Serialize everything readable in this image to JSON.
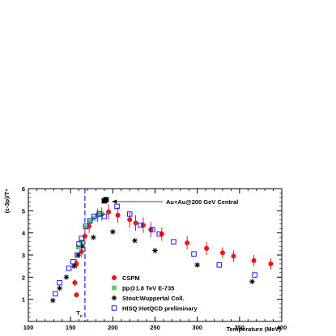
{
  "chart_data": {
    "type": "scatter",
    "xlabel": "Temperature (MeV)",
    "ylabel": "(ε-3p)/T⁴",
    "xlim": [
      100,
      400
    ],
    "ylim": [
      0,
      6
    ],
    "x_ticks": [
      100,
      150,
      200,
      250,
      300,
      350,
      400
    ],
    "y_ticks": [
      1,
      2,
      3,
      4,
      5,
      6
    ],
    "grid": false,
    "legend_position": "bottom-center",
    "tc_marker": {
      "label": "Tc",
      "x": 167
    },
    "annotation": {
      "text": "Au+Au@200 GeV Central",
      "x": 195,
      "y": 5.45
    },
    "series": [
      {
        "name": "CSPM",
        "marker": "circle",
        "color": "#e41a1c",
        "points": [
          {
            "x": 157,
            "y": 1.2,
            "err": 0.1
          },
          {
            "x": 155,
            "y": 1.75,
            "err": 0.15
          },
          {
            "x": 157,
            "y": 2.6,
            "err": 0.2
          },
          {
            "x": 163,
            "y": 3.15,
            "err": 0.25
          },
          {
            "x": 167,
            "y": 3.85,
            "err": 0.3
          },
          {
            "x": 172,
            "y": 4.3,
            "err": 0.3
          },
          {
            "x": 182,
            "y": 4.8,
            "err": 0.3
          },
          {
            "x": 187,
            "y": 4.85,
            "err": 0.3
          },
          {
            "x": 195,
            "y": 4.95,
            "err": 0.35
          },
          {
            "x": 206,
            "y": 4.8,
            "err": 0.35
          },
          {
            "x": 220,
            "y": 4.6,
            "err": 0.35
          },
          {
            "x": 227,
            "y": 4.45,
            "err": 0.35
          },
          {
            "x": 236,
            "y": 4.35,
            "err": 0.35
          },
          {
            "x": 245,
            "y": 4.15,
            "err": 0.35
          },
          {
            "x": 258,
            "y": 3.95,
            "err": 0.3
          },
          {
            "x": 288,
            "y": 3.55,
            "err": 0.3
          },
          {
            "x": 311,
            "y": 3.3,
            "err": 0.3
          },
          {
            "x": 330,
            "y": 3.1,
            "err": 0.25
          },
          {
            "x": 343,
            "y": 2.95,
            "err": 0.25
          },
          {
            "x": 367,
            "y": 2.75,
            "err": 0.25
          },
          {
            "x": 387,
            "y": 2.6,
            "err": 0.25
          }
        ]
      },
      {
        "name": "p̅p@1.8 TeV E-735",
        "marker": "square-filled",
        "color": "#55cc55",
        "points": [
          {
            "x": 159,
            "y": 3.35
          },
          {
            "x": 163,
            "y": 3.6
          },
          {
            "x": 168,
            "y": 4.25
          },
          {
            "x": 173,
            "y": 4.5
          },
          {
            "x": 177,
            "y": 4.65
          },
          {
            "x": 181,
            "y": 4.75
          },
          {
            "x": 186,
            "y": 4.9
          }
        ]
      },
      {
        "name": "Stout:Wuppertal Coll.",
        "marker": "star",
        "color": "#000000",
        "points": [
          {
            "x": 129,
            "y": 0.95
          },
          {
            "x": 137,
            "y": 1.5
          },
          {
            "x": 145,
            "y": 2.0
          },
          {
            "x": 154,
            "y": 2.5
          },
          {
            "x": 159,
            "y": 3.0
          },
          {
            "x": 164,
            "y": 3.4
          },
          {
            "x": 177,
            "y": 3.8
          },
          {
            "x": 200,
            "y": 4.05
          },
          {
            "x": 226,
            "y": 3.65
          },
          {
            "x": 250,
            "y": 3.2
          },
          {
            "x": 300,
            "y": 2.55
          },
          {
            "x": 365,
            "y": 1.8
          }
        ]
      },
      {
        "name": "HISQ:HotQCD preliminary",
        "marker": "square-open",
        "color": "#1a1aff",
        "points": [
          {
            "x": 132,
            "y": 1.25
          },
          {
            "x": 137,
            "y": 1.75
          },
          {
            "x": 148,
            "y": 2.4
          },
          {
            "x": 153,
            "y": 2.7
          },
          {
            "x": 158,
            "y": 3.0
          },
          {
            "x": 160,
            "y": 3.5
          },
          {
            "x": 163,
            "y": 3.75
          },
          {
            "x": 168,
            "y": 4.3
          },
          {
            "x": 173,
            "y": 4.55
          },
          {
            "x": 178,
            "y": 4.75
          },
          {
            "x": 184,
            "y": 4.85
          },
          {
            "x": 190,
            "y": 4.75
          },
          {
            "x": 205,
            "y": 5.2
          },
          {
            "x": 220,
            "y": 4.85
          },
          {
            "x": 233,
            "y": 4.35
          },
          {
            "x": 247,
            "y": 4.15
          },
          {
            "x": 255,
            "y": 3.95
          },
          {
            "x": 272,
            "y": 3.6
          },
          {
            "x": 296,
            "y": 3.05
          },
          {
            "x": 326,
            "y": 2.55
          },
          {
            "x": 368,
            "y": 2.1
          }
        ]
      },
      {
        "name": "Au+Au@200 GeV Central",
        "marker": "square-black",
        "color": "#000000",
        "points": [
          {
            "x": 190,
            "y": 5.45
          },
          {
            "x": 192,
            "y": 5.5
          }
        ]
      }
    ],
    "legend": [
      {
        "label": "CSPM",
        "marker": "circle",
        "color": "#e41a1c"
      },
      {
        "label": "p̅p@1.8 TeV E-735",
        "marker": "square-filled",
        "color": "#55cc55"
      },
      {
        "label": "Stout:Wuppertal Coll.",
        "marker": "star",
        "color": "#000000"
      },
      {
        "label": "HISQ:HotQCD preliminary",
        "marker": "square-open",
        "color": "#1a1aff"
      }
    ]
  }
}
